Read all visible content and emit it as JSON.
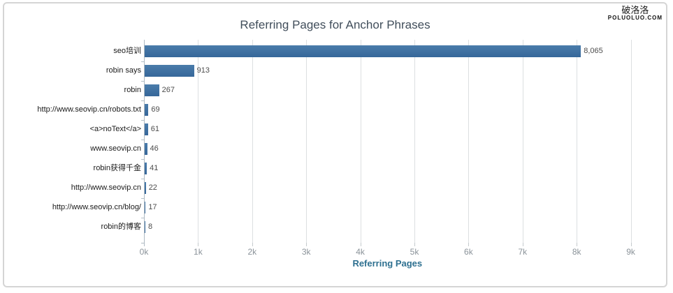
{
  "branding": {
    "logo_cn": "破洛洛",
    "logo_domain": "POLUOLUO.COM"
  },
  "chart_data": {
    "type": "bar",
    "orientation": "horizontal",
    "title": "Referring Pages for Anchor Phrases",
    "xlabel": "Referring Pages",
    "categories": [
      "seo培训",
      "robin says",
      "robin",
      "http://www.seovip.cn/robots.txt",
      "<a>noText</a>",
      "www.seovip.cn",
      "robin获得千金",
      "http://www.seovip.cn",
      "http://www.seovip.cn/blog/",
      "robin的博客"
    ],
    "values": [
      8065,
      913,
      267,
      69,
      61,
      46,
      41,
      22,
      17,
      8
    ],
    "value_labels": [
      "8,065",
      "913",
      "267",
      "69",
      "61",
      "46",
      "41",
      "22",
      "17",
      "8"
    ],
    "x_ticks": [
      "0k",
      "1k",
      "2k",
      "3k",
      "4k",
      "5k",
      "6k",
      "7k",
      "8k",
      "9k"
    ],
    "xlim": [
      0,
      9000
    ],
    "grid": true,
    "legend": false,
    "colors": {
      "bar_top": "#4a7cab",
      "bar_bottom": "#36679a",
      "gridline": "#dcdfe1",
      "axis": "#aeb9c2",
      "title": "#414e5b",
      "xlabel": "#2e7090",
      "tick_label": "#8b939a",
      "value_label": "#4d4d4d"
    }
  }
}
